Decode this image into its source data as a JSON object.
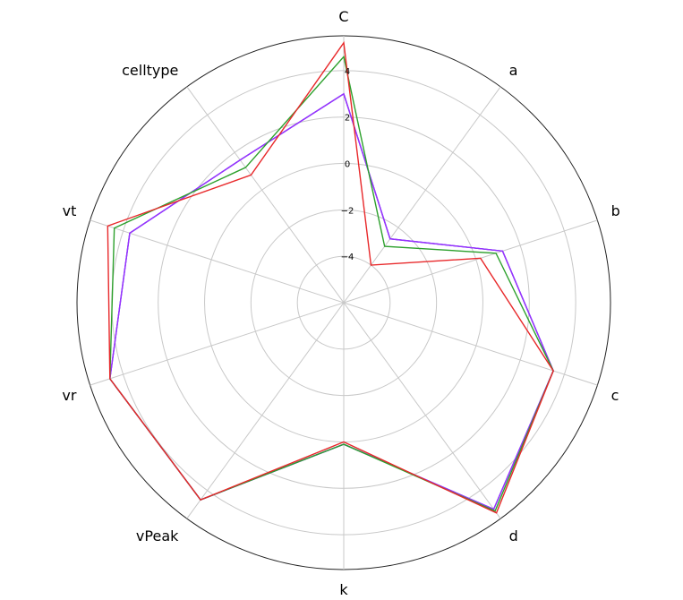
{
  "chart_data": {
    "type": "radar",
    "axes": [
      "C",
      "a",
      "b",
      "c",
      "d",
      "k",
      "vPeak",
      "vr",
      "vt",
      "celltype"
    ],
    "rticks": [
      -4,
      -2,
      0,
      2,
      4
    ],
    "rlim": [
      -6,
      5.5
    ],
    "grid": true,
    "legend": "none",
    "series": [
      {
        "color": "#e8282a",
        "values": [
          5.2,
          -4.0,
          0.2,
          3.5,
          5.2,
          0.0,
          4.5,
          4.6,
          4.7,
          0.8
        ]
      },
      {
        "color": "#2ca02c",
        "values": [
          4.6,
          -3.0,
          0.9,
          3.5,
          5.1,
          0.1,
          4.5,
          4.6,
          4.4,
          1.2
        ]
      },
      {
        "color": "#1f1fd8",
        "values": [
          3.0,
          -2.6,
          1.2,
          3.5,
          5.0,
          0.1,
          4.5,
          4.6,
          3.7,
          1.6
        ]
      },
      {
        "color": "#9b30ff",
        "values": [
          3.0,
          -2.6,
          1.2,
          3.5,
          5.0,
          0.1,
          4.5,
          4.6,
          3.7,
          1.6
        ]
      }
    ]
  }
}
